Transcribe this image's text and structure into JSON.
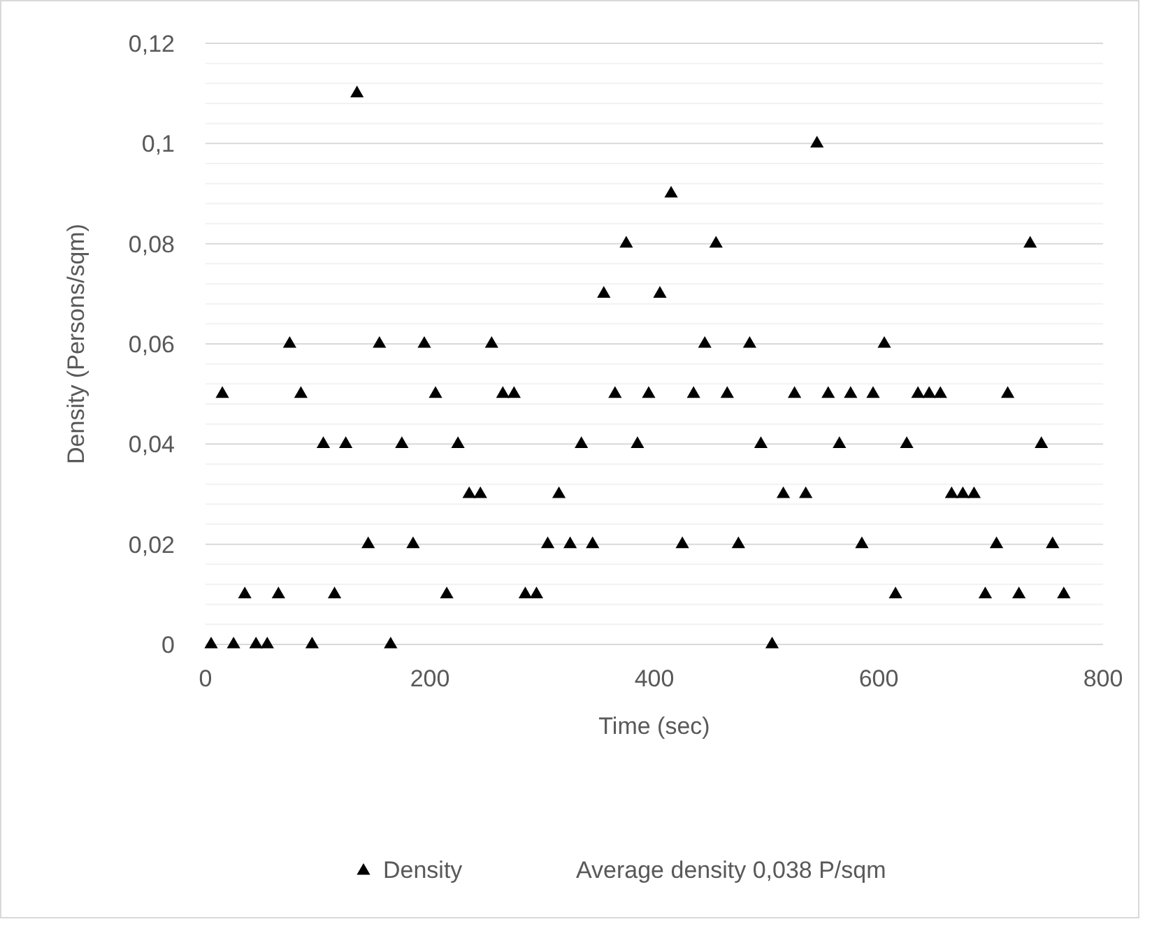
{
  "chart_data": {
    "type": "scatter",
    "xlabel": "Time (sec)",
    "ylabel": "Density (Persons/sqm)",
    "x": [
      5,
      15,
      25,
      35,
      45,
      55,
      65,
      75,
      85,
      95,
      105,
      115,
      125,
      135,
      145,
      155,
      165,
      175,
      185,
      195,
      205,
      215,
      225,
      235,
      245,
      255,
      265,
      275,
      285,
      295,
      305,
      315,
      325,
      335,
      345,
      355,
      365,
      375,
      385,
      395,
      405,
      415,
      425,
      435,
      445,
      455,
      465,
      475,
      485,
      495,
      505,
      515,
      525,
      535,
      545,
      555,
      565,
      575,
      585,
      595,
      605,
      615,
      625,
      635,
      645,
      655,
      665,
      675,
      685,
      695,
      705,
      715,
      725,
      735,
      745,
      755,
      765
    ],
    "series": [
      {
        "name": "Density",
        "color": "#000000",
        "values": [
          0,
          0.05,
          0,
          0.01,
          0,
          0,
          0.01,
          0.06,
          0.05,
          0,
          0.04,
          0.01,
          0.04,
          0.11,
          0.02,
          0.06,
          0,
          0.04,
          0.02,
          0.06,
          0.05,
          0.01,
          0.04,
          0.03,
          0.03,
          0.06,
          0.05,
          0.05,
          0.01,
          0.01,
          0.02,
          0.03,
          0.02,
          0.04,
          0.02,
          0.07,
          0.05,
          0.08,
          0.04,
          0.05,
          0.07,
          0.09,
          0.02,
          0.05,
          0.06,
          0.08,
          0.05,
          0.02,
          0.06,
          0.04,
          0,
          0.03,
          0.05,
          0.03,
          0.1,
          0.05,
          0.04,
          0.05,
          0.02,
          0.05,
          0.06,
          0.01,
          0.04,
          0.05,
          0.05,
          0.05,
          0.03,
          0.03,
          0.03,
          0.01,
          0.02,
          0.05,
          0.01,
          0.08,
          0.04,
          0.02,
          0.01
        ]
      }
    ],
    "marker": "triangle",
    "xlim": [
      0,
      800
    ],
    "xticks": [
      0,
      200,
      400,
      600,
      800
    ],
    "ylim": [
      0,
      0.12
    ],
    "yticks": [
      {
        "value": 0,
        "label": "0"
      },
      {
        "value": 0.004,
        "label": null
      },
      {
        "value": 0.008,
        "label": null
      },
      {
        "value": 0.012,
        "label": null
      },
      {
        "value": 0.016,
        "label": null
      },
      {
        "value": 0.02,
        "label": "0,02"
      },
      {
        "value": 0.024,
        "label": null
      },
      {
        "value": 0.028,
        "label": null
      },
      {
        "value": 0.032,
        "label": null
      },
      {
        "value": 0.036,
        "label": null
      },
      {
        "value": 0.04,
        "label": "0,04"
      },
      {
        "value": 0.044,
        "label": null
      },
      {
        "value": 0.048,
        "label": null
      },
      {
        "value": 0.052,
        "label": null
      },
      {
        "value": 0.056,
        "label": null
      },
      {
        "value": 0.06,
        "label": "0,06"
      },
      {
        "value": 0.064,
        "label": null
      },
      {
        "value": 0.068,
        "label": null
      },
      {
        "value": 0.072,
        "label": null
      },
      {
        "value": 0.076,
        "label": null
      },
      {
        "value": 0.08,
        "label": "0,08"
      },
      {
        "value": 0.084,
        "label": null
      },
      {
        "value": 0.088,
        "label": null
      },
      {
        "value": 0.092,
        "label": null
      },
      {
        "value": 0.096,
        "label": null
      },
      {
        "value": 0.1,
        "label": "0,1"
      },
      {
        "value": 0.104,
        "label": null
      },
      {
        "value": 0.108,
        "label": null
      },
      {
        "value": 0.112,
        "label": null
      },
      {
        "value": 0.116,
        "label": null
      },
      {
        "value": 0.12,
        "label": "0,12"
      }
    ],
    "grid": "y",
    "legend": "bottom",
    "annotations": [
      "Average density 0,038 P/sqm"
    ]
  }
}
